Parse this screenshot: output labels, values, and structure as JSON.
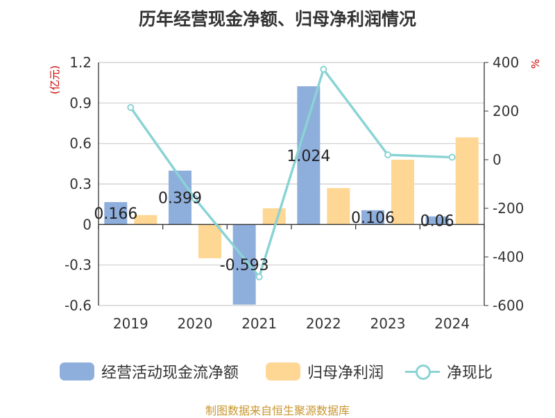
{
  "title": "历年经营现金净额、归母净利润情况",
  "source": "制图数据来自恒生聚源数据库",
  "colors": {
    "cash": "#8eaedc",
    "profit": "#ffd795",
    "ratio": "#8ad3d5"
  },
  "chart_data": {
    "type": "bar",
    "categories": [
      "2019",
      "2020",
      "2021",
      "2022",
      "2023",
      "2024"
    ],
    "series": [
      {
        "name": "经营活动现金流净额",
        "type": "bar",
        "axis": "left",
        "values": [
          0.166,
          0.399,
          -0.593,
          1.024,
          0.106,
          0.06
        ],
        "labels": [
          "0.166",
          "0.399",
          "-0.593",
          "1.024",
          "0.106",
          "0.06"
        ]
      },
      {
        "name": "归母净利润",
        "type": "bar",
        "axis": "left",
        "values": [
          0.07,
          -0.25,
          0.12,
          0.27,
          0.48,
          0.645
        ]
      },
      {
        "name": "净现比",
        "type": "line",
        "axis": "right",
        "values": [
          215,
          -160,
          -482,
          372,
          20,
          10
        ]
      }
    ],
    "ylabel_left": "(亿元)",
    "ylabel_right": "%",
    "ylim_left": [
      -0.6,
      1.2
    ],
    "yticks_left": [
      -0.6,
      -0.3,
      0,
      0.3,
      0.6,
      0.9,
      1.2
    ],
    "ytick_labels_left": [
      "-0.6",
      "-0.3",
      "0",
      "0.3",
      "0.6",
      "0.9",
      "1.2"
    ],
    "ylim_right": [
      -600,
      400
    ],
    "yticks_right": [
      -600,
      -400,
      -200,
      0,
      200,
      400
    ],
    "ytick_labels_right": [
      "-600",
      "-400",
      "-200",
      "0",
      "200",
      "400"
    ],
    "grid": true,
    "legend_position": "bottom"
  }
}
